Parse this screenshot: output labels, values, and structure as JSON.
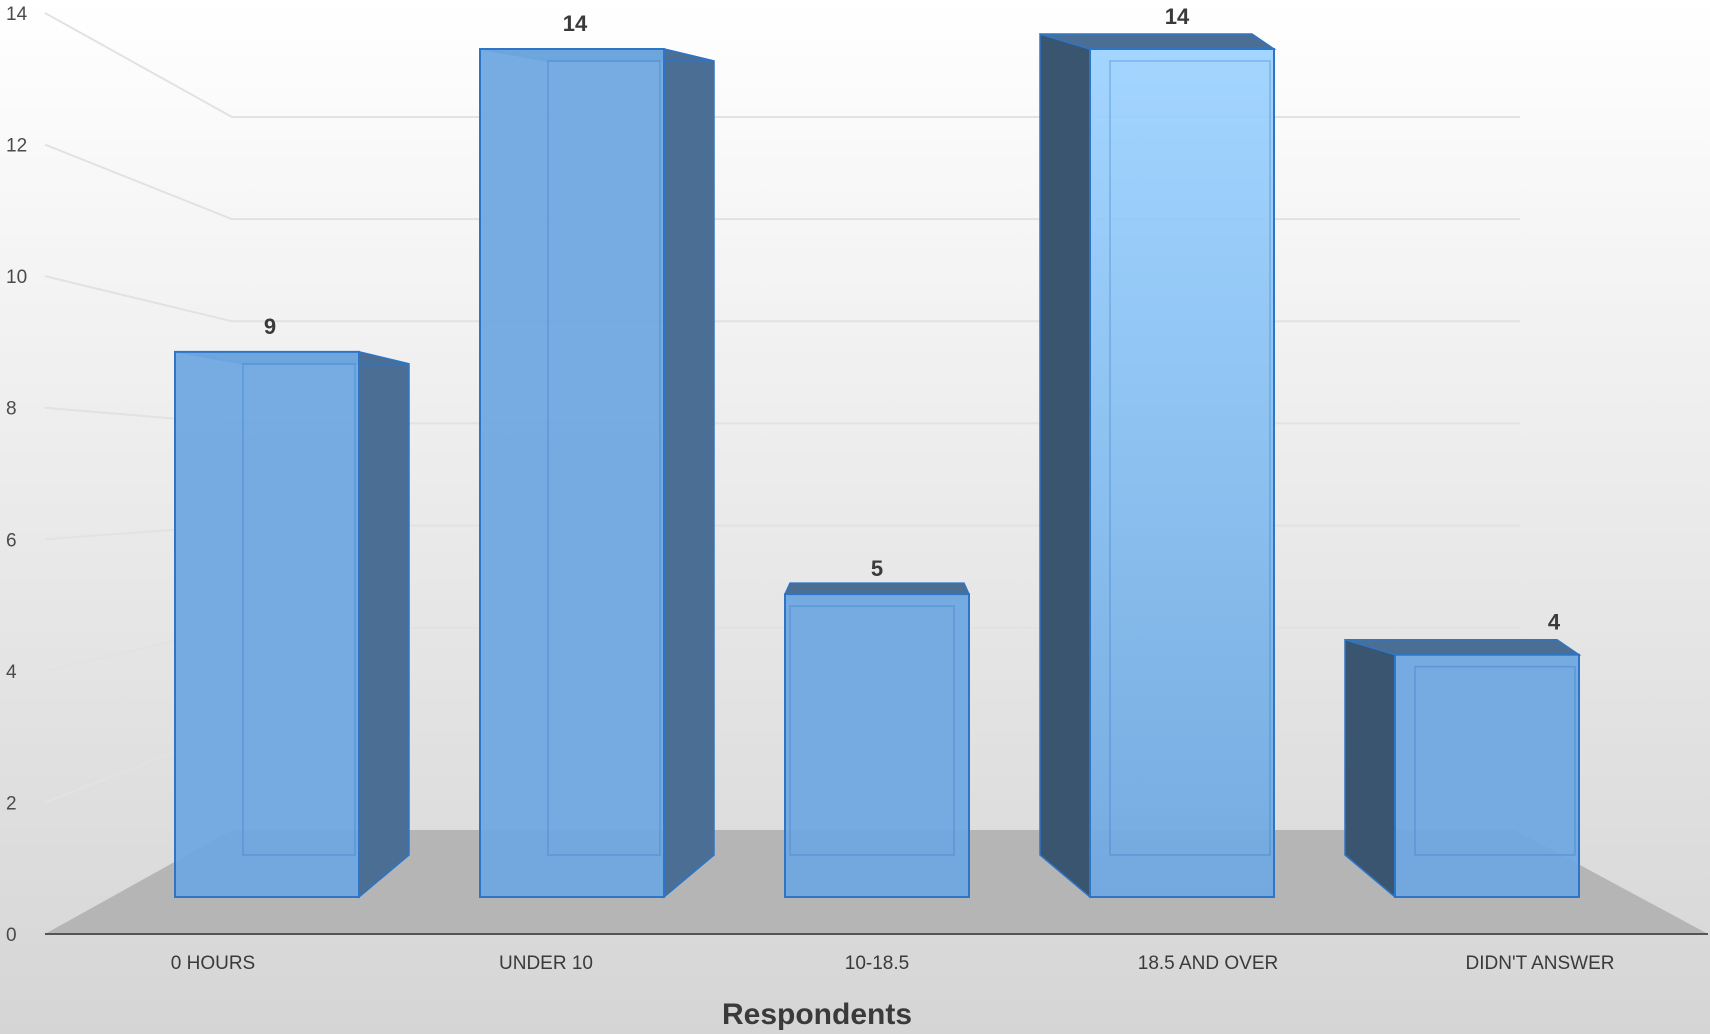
{
  "chart_data": {
    "type": "bar",
    "categories": [
      "0 HOURS",
      "UNDER 10",
      "10-18.5",
      "18.5 AND OVER",
      "DIDN'T ANSWER"
    ],
    "values": [
      9,
      14,
      5,
      14,
      4
    ],
    "title": "",
    "xlabel": "Respondents",
    "ylabel": "",
    "ylim": [
      0,
      14
    ],
    "yticks": [
      0,
      2,
      4,
      6,
      8,
      10,
      12,
      14
    ],
    "grid": true,
    "legend": "none",
    "style": "3d-column",
    "colors": {
      "bar_front": "#6fa8e0",
      "bar_front_light": "#9ed3ff",
      "bar_edge": "#2e75c6",
      "bar_side": "#4b6f94",
      "bar_side_dark": "#3a556f",
      "floor": "#b5b5b5",
      "background_top": "#ffffff",
      "background_bottom": "#d5d5d5",
      "gridline": "#e2e2e2"
    }
  }
}
